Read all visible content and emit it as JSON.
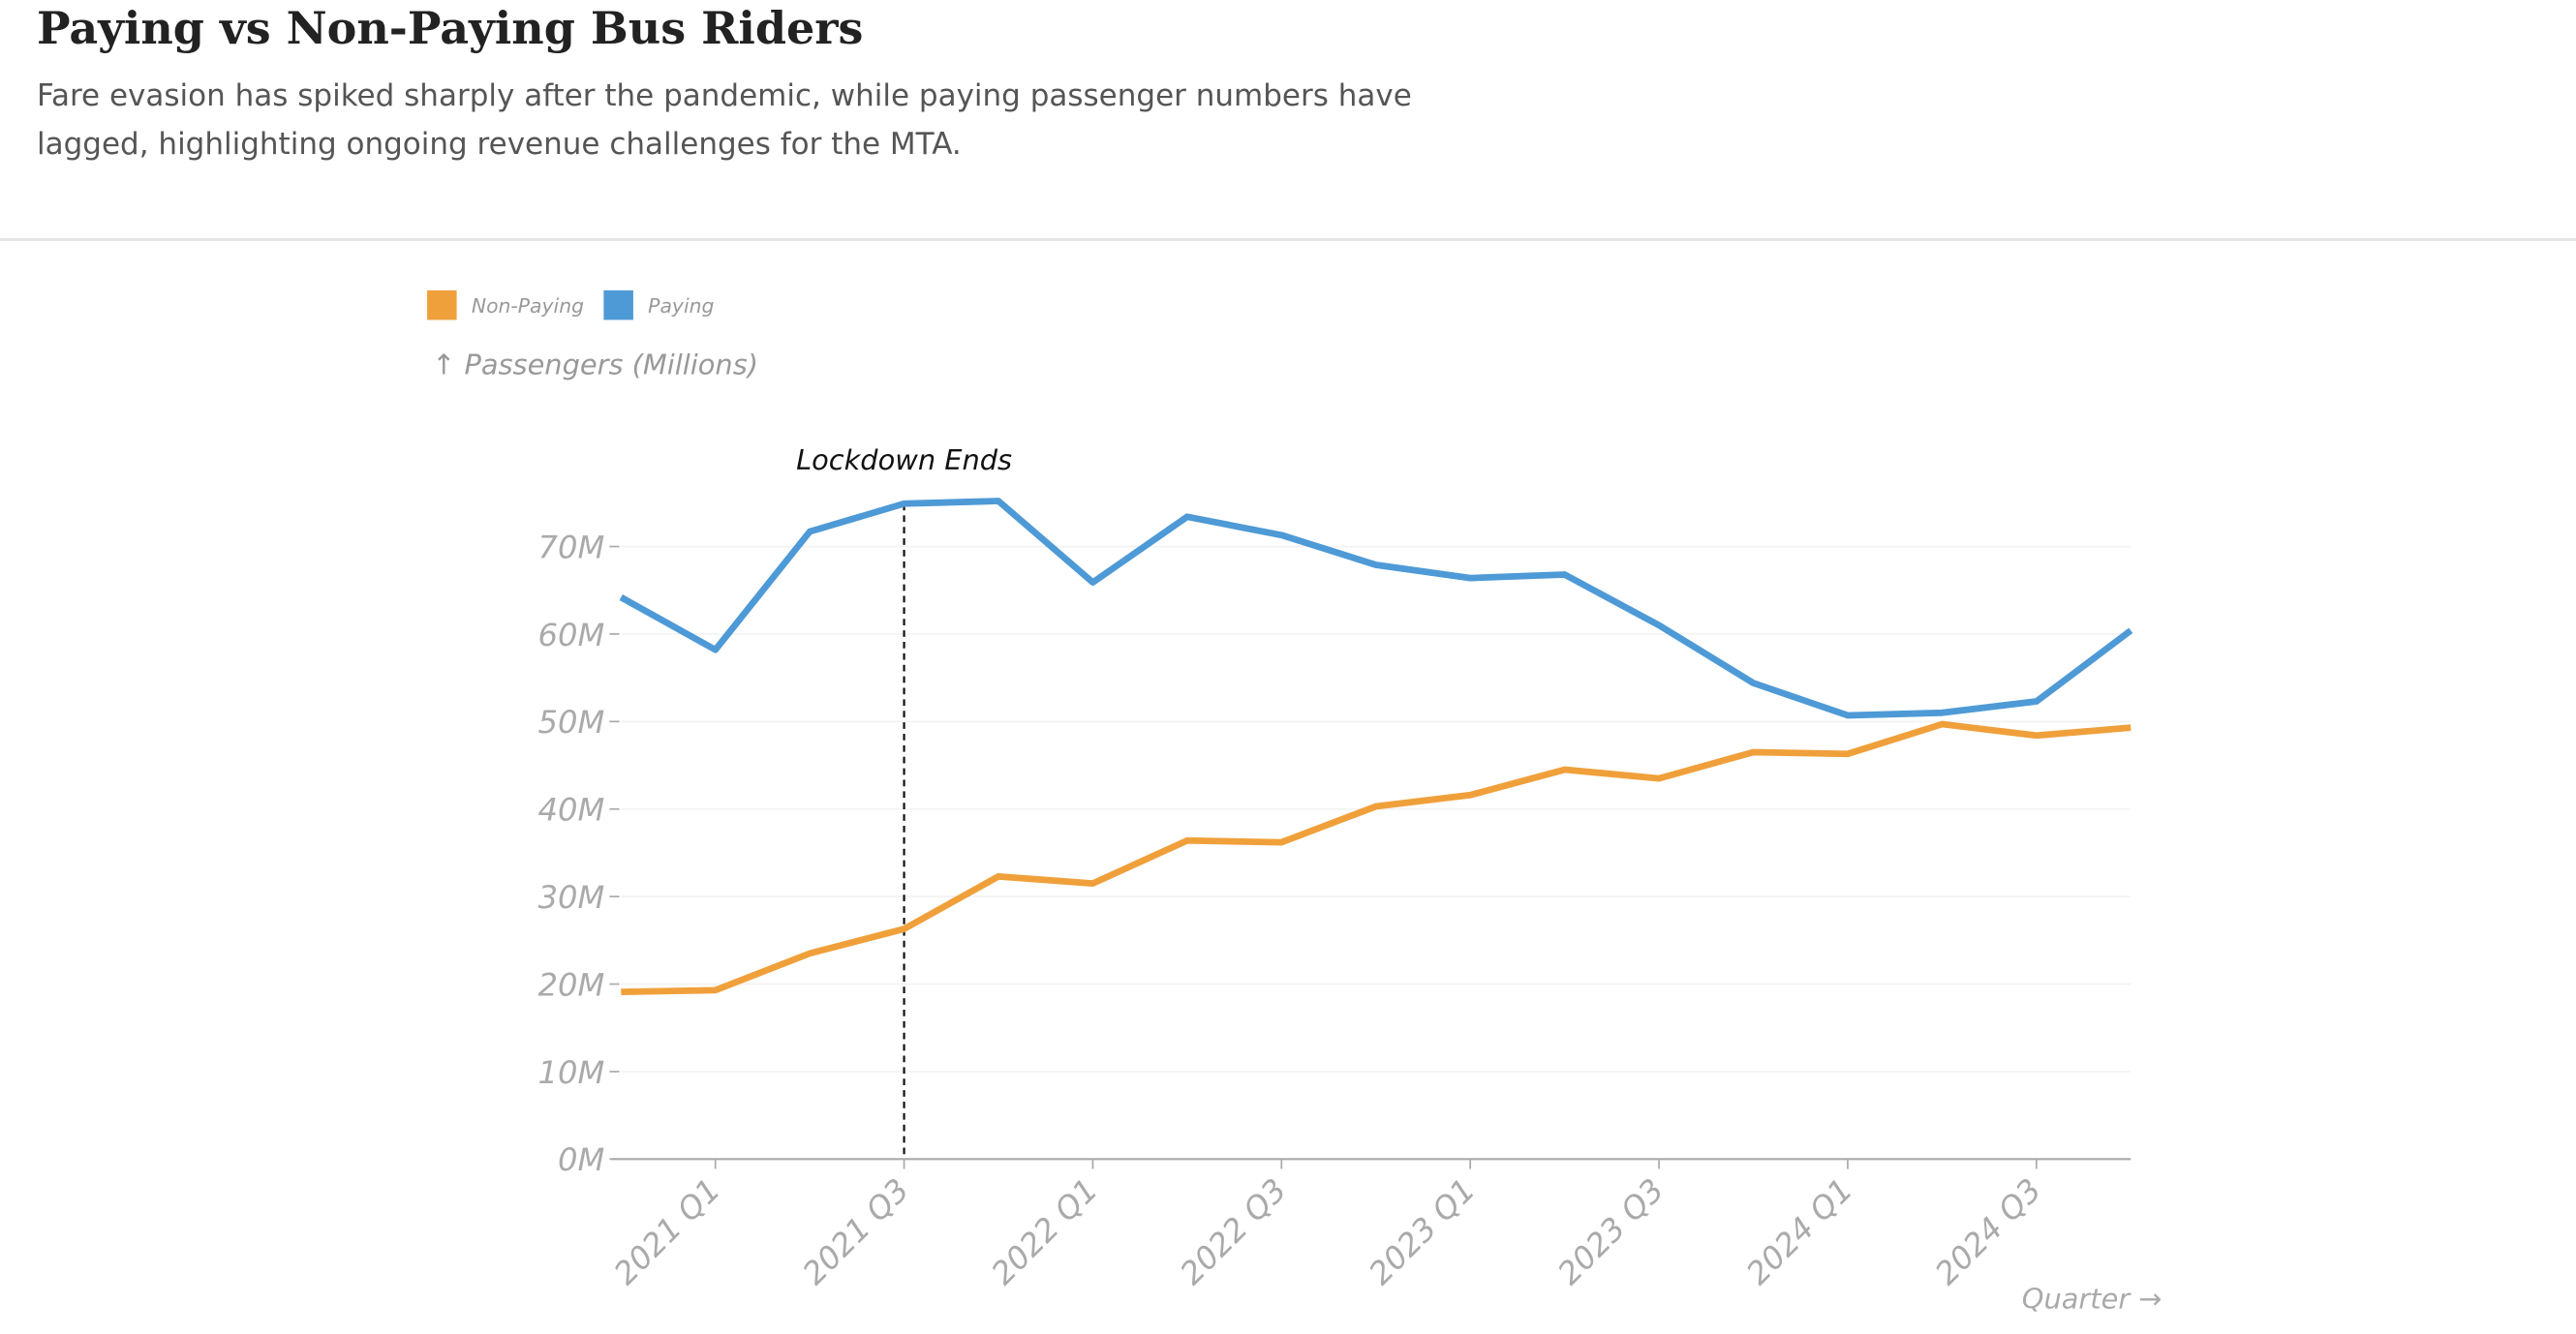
{
  "chart_data": {
    "type": "line",
    "title": "Paying vs Non-Paying Bus Riders",
    "subtitle": "Fare evasion has spiked sharply after the pandemic, while paying passenger numbers have lagged, highlighting ongoing revenue challenges for the MTA.",
    "y_label": "↑ Passengers (Millions)",
    "x_label": "Quarter →",
    "categories": [
      null,
      "2021 Q1",
      null,
      "2021 Q3",
      null,
      "2022 Q1",
      null,
      "2022 Q3",
      null,
      "2023 Q1",
      null,
      "2023 Q3",
      null,
      "2024 Q1",
      null,
      "2024 Q3",
      null
    ],
    "series": [
      {
        "name": "Non-Paying",
        "color": "#f0a03a",
        "values": [
          19.1,
          19.3,
          23.5,
          26.3,
          32.3,
          31.5,
          36.4,
          36.2,
          40.3,
          41.6,
          44.5,
          43.5,
          46.5,
          46.3,
          49.7,
          48.4,
          49.3
        ]
      },
      {
        "name": "Paying",
        "color": "#4e9ad6",
        "values": [
          64.2,
          58.2,
          71.7,
          74.9,
          75.2,
          65.9,
          73.4,
          71.3,
          67.9,
          66.4,
          66.8,
          61.0,
          54.4,
          50.7,
          51.0,
          52.3,
          60.4
        ]
      }
    ],
    "ylim": [
      0,
      70
    ],
    "yticks": [
      {
        "value": 0,
        "label": "0M"
      },
      {
        "value": 10,
        "label": "10M"
      },
      {
        "value": 20,
        "label": "20M"
      },
      {
        "value": 30,
        "label": "30M"
      },
      {
        "value": 40,
        "label": "40M"
      },
      {
        "value": 50,
        "label": "50M"
      },
      {
        "value": 60,
        "label": "60M"
      },
      {
        "value": 70,
        "label": "70M"
      }
    ],
    "grid": true,
    "legend": "top-left",
    "annotations": [
      {
        "text": "Lockdown Ends",
        "x": "2021 Q3"
      }
    ]
  }
}
